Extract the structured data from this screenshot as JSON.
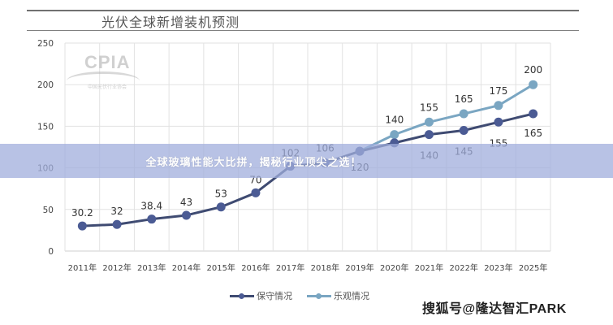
{
  "header": {
    "title": "光伏全球新增装机预测"
  },
  "banner": {
    "text": "全球玻璃性能大比拼，揭秘行业顶尖之选！"
  },
  "watermarks": {
    "logo_text": "CPIA",
    "logo_subtext": "中国光伏行业协会",
    "source": "搜狐号@隆达智汇PARK"
  },
  "colors": {
    "conservative": "#3f4b72",
    "conservative_marker": "#4b5b94",
    "optimistic": "#7aa6c2",
    "optimistic_marker": "#7aa6c2",
    "banner": "#a0aedc",
    "grid": "#e2e2e2"
  },
  "legend": {
    "items": [
      {
        "label": "保守情况",
        "series": "conservative"
      },
      {
        "label": "乐观情况",
        "series": "optimistic"
      }
    ]
  },
  "chart_data": {
    "type": "line",
    "title": "光伏全球新增装机预测",
    "xlabel": "",
    "ylabel": "",
    "ylim": [
      0,
      250
    ],
    "yticks": [
      0,
      50,
      100,
      150,
      200,
      250
    ],
    "grid": true,
    "legend_position": "bottom",
    "categories": [
      "2011年",
      "2012年",
      "2013年",
      "2014年",
      "2015年",
      "2016年",
      "2017年",
      "2018年",
      "2019年",
      "2020年",
      "2021年",
      "2022年",
      "2023年",
      "2025年"
    ],
    "series": [
      {
        "name": "保守情况",
        "values": [
          30.2,
          32,
          38.4,
          43,
          53,
          70,
          102,
          106,
          120,
          130,
          140,
          145,
          155,
          165
        ],
        "labels": [
          "30.2",
          "32",
          "38.4",
          "43",
          "53",
          "70",
          "102",
          "106",
          "120",
          "",
          "140",
          "145",
          "155",
          "165"
        ]
      },
      {
        "name": "乐观情况",
        "values": [
          null,
          null,
          null,
          null,
          null,
          null,
          null,
          null,
          120,
          140,
          155,
          165,
          175,
          200
        ],
        "labels": [
          "",
          "",
          "",
          "",
          "",
          "",
          "",
          "",
          "",
          "140",
          "155",
          "165",
          "175",
          "200"
        ]
      }
    ]
  }
}
